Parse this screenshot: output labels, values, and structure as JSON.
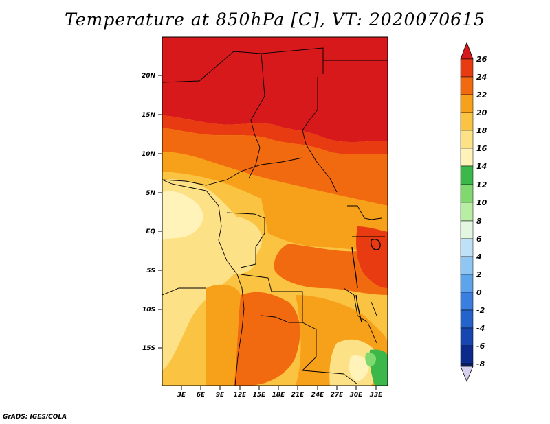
{
  "title": "Temperature at 850hPa [C], VT: 2020070615",
  "credit": "GrADS: IGES/COLA",
  "map": {
    "lat_labels": [
      "20N",
      "15N",
      "10N",
      "5N",
      "EQ",
      "5S",
      "10S",
      "15S"
    ],
    "lon_labels": [
      "3E",
      "6E",
      "9E",
      "12E",
      "15E",
      "18E",
      "21E",
      "24E",
      "27E",
      "30E",
      "33E"
    ]
  },
  "colorbar": {
    "labels": [
      "26",
      "24",
      "22",
      "20",
      "18",
      "16",
      "14",
      "12",
      "10",
      "8",
      "6",
      "4",
      "2",
      "0",
      "-2",
      "-4",
      "-6",
      "-8"
    ],
    "colors": [
      "#d7191c",
      "#e83b12",
      "#f26a10",
      "#f7a11a",
      "#fbc342",
      "#fde187",
      "#fff3ba",
      "#3cb84a",
      "#7fd96f",
      "#b7eea3",
      "#e3f7e0",
      "#bfe1f7",
      "#8fc6f2",
      "#5ea4ea",
      "#3a7fe0",
      "#2462cc",
      "#1846b0",
      "#0c2a8c",
      "#081a5e",
      "#d7d0ef"
    ]
  }
}
